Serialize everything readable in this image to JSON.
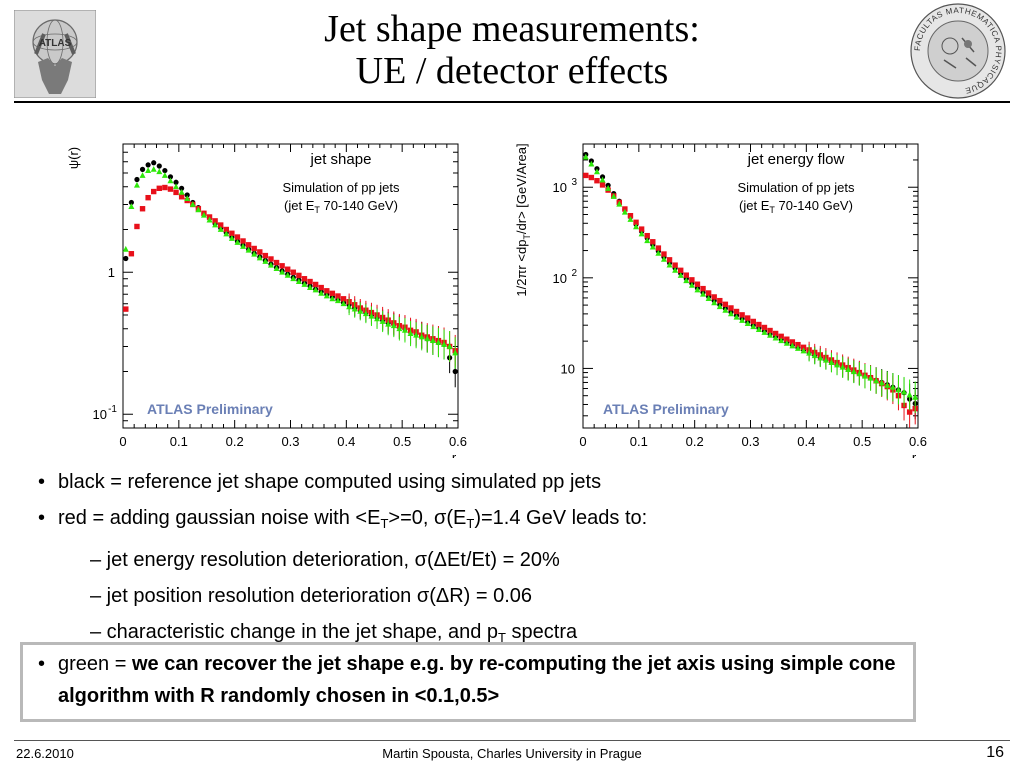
{
  "slide": {
    "title_line1": "Jet shape measurements:",
    "title_line2": "UE / detector effects",
    "date": "22.6.2010",
    "author": "Martin Spousta,  Charles University in Prague",
    "page_number": "16"
  },
  "logos": {
    "left_label": "ATLAS",
    "right_seal_text": "FACULTAS MATHEMATICA PHYSICAQUE"
  },
  "colors": {
    "reference": "#000000",
    "smeared": "#e8101a",
    "recovered": "#2ee80a",
    "prelim": "#6a7fb5",
    "box_border": "#b9b9b9"
  },
  "bullets": {
    "b1": "black = reference jet shape computed using simulated pp jets",
    "b2_pre": "red = adding gaussian noise with <E",
    "b2_sub1": "T",
    "b2_mid": ">=0, σ(E",
    "b2_sub2": "T",
    "b2_post": ")=1.4 GeV leads to:",
    "s1": "– jet energy resolution deterioration, σ(ΔEt/Et) = 20%",
    "s2": "– jet position resolution deterioration σ(ΔR) = 0.06",
    "s3_pre": "– characteristic change in the jet shape, and p",
    "s3_sub": "T",
    "s3_post": " spectra",
    "g_pre": "green = ",
    "g_bold": "we can recover the jet shape e.g. by re-computing the jet axis using simple cone algorithm with R randomly chosen in <0.1,0.5>"
  },
  "chart_data": [
    {
      "type": "scatter",
      "title": "jet shape",
      "subtitle_line1": "Simulation of pp jets",
      "subtitle_line2_pre": "(jet E",
      "subtitle_line2_sub": "T",
      "subtitle_line2_post": " 70-140 GeV)",
      "watermark": "ATLAS Preliminary",
      "ylabel": "ψ(r)",
      "xlabel": "r",
      "yscale": "log",
      "xlim": [
        0,
        0.6
      ],
      "ylim": [
        0.08,
        8
      ],
      "x_ticks": [
        "0",
        "0.1",
        "0.2",
        "0.3",
        "0.4",
        "0.5",
        "0.6"
      ],
      "y_ticks": [
        {
          "value": 1,
          "base": "1",
          "exp": ""
        },
        {
          "value": 0.1,
          "base": "10",
          "exp": "-1"
        }
      ],
      "series": [
        {
          "color": "reference",
          "x": [
            0.005,
            0.015,
            0.025,
            0.035,
            0.045,
            0.055,
            0.065,
            0.075,
            0.085,
            0.095,
            0.105,
            0.115,
            0.125,
            0.135,
            0.145,
            0.155,
            0.165,
            0.175,
            0.185,
            0.195,
            0.205,
            0.215,
            0.225,
            0.235,
            0.245,
            0.255,
            0.265,
            0.275,
            0.285,
            0.295,
            0.305,
            0.315,
            0.325,
            0.335,
            0.345,
            0.355,
            0.365,
            0.375,
            0.385,
            0.395,
            0.405,
            0.415,
            0.425,
            0.435,
            0.445,
            0.455,
            0.465,
            0.475,
            0.485,
            0.495,
            0.505,
            0.515,
            0.525,
            0.535,
            0.545,
            0.555,
            0.565,
            0.575,
            0.585,
            0.595
          ],
          "y": [
            1.25,
            3.1,
            4.5,
            5.3,
            5.7,
            5.9,
            5.6,
            5.2,
            4.7,
            4.3,
            3.9,
            3.5,
            3.1,
            2.85,
            2.6,
            2.4,
            2.2,
            2.05,
            1.9,
            1.77,
            1.65,
            1.55,
            1.45,
            1.36,
            1.28,
            1.21,
            1.14,
            1.08,
            1.02,
            0.97,
            0.92,
            0.88,
            0.84,
            0.8,
            0.76,
            0.73,
            0.7,
            0.67,
            0.64,
            0.61,
            0.59,
            0.56,
            0.54,
            0.52,
            0.5,
            0.48,
            0.46,
            0.44,
            0.43,
            0.41,
            0.4,
            0.38,
            0.37,
            0.36,
            0.34,
            0.33,
            0.32,
            0.31,
            0.25,
            0.2
          ]
        },
        {
          "color": "smeared",
          "x": [
            0.005,
            0.015,
            0.025,
            0.035,
            0.045,
            0.055,
            0.065,
            0.075,
            0.085,
            0.095,
            0.105,
            0.115,
            0.125,
            0.135,
            0.145,
            0.155,
            0.165,
            0.175,
            0.185,
            0.195,
            0.205,
            0.215,
            0.225,
            0.235,
            0.245,
            0.255,
            0.265,
            0.275,
            0.285,
            0.295,
            0.305,
            0.315,
            0.325,
            0.335,
            0.345,
            0.355,
            0.365,
            0.375,
            0.385,
            0.395,
            0.405,
            0.415,
            0.425,
            0.435,
            0.445,
            0.455,
            0.465,
            0.475,
            0.485,
            0.495,
            0.505,
            0.515,
            0.525,
            0.535,
            0.545,
            0.555,
            0.565,
            0.575,
            0.585,
            0.595
          ],
          "y": [
            0.55,
            1.35,
            2.1,
            2.8,
            3.35,
            3.7,
            3.9,
            3.95,
            3.85,
            3.65,
            3.4,
            3.2,
            3.0,
            2.8,
            2.6,
            2.45,
            2.3,
            2.15,
            2.0,
            1.88,
            1.77,
            1.66,
            1.56,
            1.47,
            1.39,
            1.31,
            1.24,
            1.17,
            1.11,
            1.05,
            1.0,
            0.95,
            0.9,
            0.86,
            0.82,
            0.78,
            0.74,
            0.71,
            0.68,
            0.65,
            0.62,
            0.59,
            0.56,
            0.54,
            0.52,
            0.5,
            0.48,
            0.46,
            0.44,
            0.42,
            0.41,
            0.39,
            0.38,
            0.36,
            0.35,
            0.34,
            0.33,
            0.32,
            0.3,
            0.28
          ]
        },
        {
          "color": "recovered",
          "x": [
            0.005,
            0.015,
            0.025,
            0.035,
            0.045,
            0.055,
            0.065,
            0.075,
            0.085,
            0.095,
            0.105,
            0.115,
            0.125,
            0.135,
            0.145,
            0.155,
            0.165,
            0.175,
            0.185,
            0.195,
            0.205,
            0.215,
            0.225,
            0.235,
            0.245,
            0.255,
            0.265,
            0.275,
            0.285,
            0.295,
            0.305,
            0.315,
            0.325,
            0.335,
            0.345,
            0.355,
            0.365,
            0.375,
            0.385,
            0.395,
            0.405,
            0.415,
            0.425,
            0.435,
            0.445,
            0.455,
            0.465,
            0.475,
            0.485,
            0.495,
            0.505,
            0.515,
            0.525,
            0.535,
            0.545,
            0.555,
            0.565,
            0.575,
            0.585,
            0.595
          ],
          "y": [
            1.45,
            2.9,
            4.1,
            4.8,
            5.2,
            5.3,
            5.1,
            4.8,
            4.4,
            4.0,
            3.65,
            3.3,
            3.0,
            2.75,
            2.52,
            2.33,
            2.15,
            2.0,
            1.86,
            1.73,
            1.62,
            1.52,
            1.43,
            1.34,
            1.26,
            1.19,
            1.12,
            1.06,
            1.0,
            0.95,
            0.9,
            0.86,
            0.82,
            0.78,
            0.75,
            0.71,
            0.68,
            0.65,
            0.63,
            0.6,
            0.57,
            0.55,
            0.53,
            0.51,
            0.49,
            0.47,
            0.45,
            0.43,
            0.42,
            0.4,
            0.39,
            0.37,
            0.36,
            0.35,
            0.34,
            0.33,
            0.32,
            0.31,
            0.3,
            0.27
          ]
        }
      ]
    },
    {
      "type": "scatter",
      "title": "jet energy flow",
      "subtitle_line1": "Simulation of pp jets",
      "subtitle_line2_pre": "(jet E",
      "subtitle_line2_sub": "T",
      "subtitle_line2_post": " 70-140 GeV)",
      "watermark": "ATLAS Preliminary",
      "ylabel_pre": "1/2πr <dp",
      "ylabel_sub": "T",
      "ylabel_post": "/dr> [GeV/Area]",
      "xlabel": "r",
      "yscale": "log",
      "xlim": [
        0,
        0.6
      ],
      "ylim": [
        2.2,
        3000
      ],
      "x_ticks": [
        "0",
        "0.1",
        "0.2",
        "0.3",
        "0.4",
        "0.5",
        "0.6"
      ],
      "y_ticks": [
        {
          "value": 1000,
          "base": "10",
          "exp": "3"
        },
        {
          "value": 100,
          "base": "10",
          "exp": "2"
        },
        {
          "value": 10,
          "base": "10",
          "exp": ""
        }
      ],
      "series": [
        {
          "color": "reference",
          "x": [
            0.005,
            0.015,
            0.025,
            0.035,
            0.045,
            0.055,
            0.065,
            0.075,
            0.085,
            0.095,
            0.105,
            0.115,
            0.125,
            0.135,
            0.145,
            0.155,
            0.165,
            0.175,
            0.185,
            0.195,
            0.205,
            0.215,
            0.225,
            0.235,
            0.245,
            0.255,
            0.265,
            0.275,
            0.285,
            0.295,
            0.305,
            0.315,
            0.325,
            0.335,
            0.345,
            0.355,
            0.365,
            0.375,
            0.385,
            0.395,
            0.405,
            0.415,
            0.425,
            0.435,
            0.445,
            0.455,
            0.465,
            0.475,
            0.485,
            0.495,
            0.505,
            0.515,
            0.525,
            0.535,
            0.545,
            0.555,
            0.565,
            0.575,
            0.585,
            0.595
          ],
          "y": [
            2300,
            1950,
            1600,
            1300,
            1050,
            850,
            700,
            570,
            470,
            390,
            325,
            275,
            232,
            197,
            170,
            146,
            128,
            112,
            98,
            87,
            77,
            69,
            62,
            56,
            50.5,
            46,
            42,
            38.5,
            35.5,
            32.5,
            30,
            28,
            26,
            24,
            22.5,
            21,
            19.5,
            18.2,
            17,
            16,
            15,
            14,
            13.2,
            12.4,
            11.7,
            11,
            10.4,
            9.8,
            9.3,
            8.8,
            8.3,
            7.9,
            7.4,
            7.0,
            6.6,
            6.2,
            5.8,
            5.4,
            4.6,
            4.1
          ]
        },
        {
          "color": "smeared",
          "x": [
            0.005,
            0.015,
            0.025,
            0.035,
            0.045,
            0.055,
            0.065,
            0.075,
            0.085,
            0.095,
            0.105,
            0.115,
            0.125,
            0.135,
            0.145,
            0.155,
            0.165,
            0.175,
            0.185,
            0.195,
            0.205,
            0.215,
            0.225,
            0.235,
            0.245,
            0.255,
            0.265,
            0.275,
            0.285,
            0.295,
            0.305,
            0.315,
            0.325,
            0.335,
            0.345,
            0.355,
            0.365,
            0.375,
            0.385,
            0.395,
            0.405,
            0.415,
            0.425,
            0.435,
            0.445,
            0.455,
            0.465,
            0.475,
            0.485,
            0.495,
            0.505,
            0.515,
            0.525,
            0.535,
            0.545,
            0.555,
            0.565,
            0.575,
            0.585,
            0.595
          ],
          "y": [
            1350,
            1280,
            1180,
            1060,
            930,
            800,
            680,
            575,
            485,
            410,
            345,
            292,
            250,
            213,
            183,
            158,
            138,
            121,
            107,
            95,
            85,
            76,
            68,
            61.5,
            56,
            51,
            46.5,
            42.5,
            39,
            36,
            33,
            30.5,
            28.3,
            26.2,
            24.3,
            22.6,
            21,
            19.6,
            18.3,
            17.1,
            16,
            15,
            14.1,
            13.2,
            12.4,
            11.6,
            10.9,
            10.2,
            9.6,
            9.0,
            8.4,
            7.9,
            7.3,
            6.8,
            6.3,
            5.8,
            5.0,
            3.9,
            3.3,
            3.6
          ]
        },
        {
          "color": "recovered",
          "x": [
            0.005,
            0.015,
            0.025,
            0.035,
            0.045,
            0.055,
            0.065,
            0.075,
            0.085,
            0.095,
            0.105,
            0.115,
            0.125,
            0.135,
            0.145,
            0.155,
            0.165,
            0.175,
            0.185,
            0.195,
            0.205,
            0.215,
            0.225,
            0.235,
            0.245,
            0.255,
            0.265,
            0.275,
            0.285,
            0.295,
            0.305,
            0.315,
            0.325,
            0.335,
            0.345,
            0.355,
            0.365,
            0.375,
            0.385,
            0.395,
            0.405,
            0.415,
            0.425,
            0.435,
            0.445,
            0.455,
            0.465,
            0.475,
            0.485,
            0.495,
            0.505,
            0.515,
            0.525,
            0.535,
            0.545,
            0.555,
            0.565,
            0.575,
            0.585,
            0.595
          ],
          "y": [
            2150,
            1800,
            1480,
            1200,
            970,
            790,
            650,
            530,
            440,
            365,
            305,
            257,
            218,
            186,
            160,
            138,
            121,
            106,
            93,
            82.5,
            73.5,
            66,
            59,
            53,
            48,
            43.8,
            40,
            36.7,
            33.8,
            31.2,
            28.9,
            26.8,
            24.9,
            23.2,
            21.6,
            20.2,
            18.9,
            17.7,
            16.6,
            15.6,
            14.7,
            13.8,
            13,
            12.3,
            11.6,
            10.9,
            10.3,
            9.7,
            9.2,
            8.7,
            8.2,
            7.8,
            7.3,
            6.9,
            6.5,
            6.2,
            5.8,
            5.5,
            5.1,
            4.8
          ]
        }
      ]
    }
  ]
}
